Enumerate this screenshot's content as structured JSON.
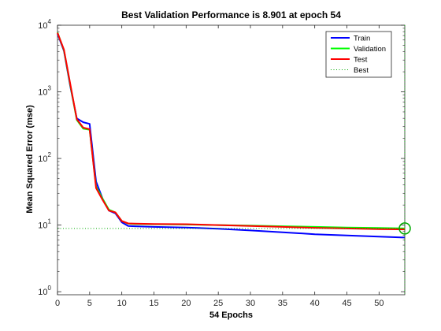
{
  "chart_data": {
    "type": "line",
    "title": "Best Validation Performance is 8.901 at epoch 54",
    "xlabel": "54 Epochs",
    "ylabel": "Mean Squared Error  (mse)",
    "yscale": "log",
    "xlim": [
      0,
      54
    ],
    "ylim": [
      0.9,
      10000
    ],
    "xticks": [
      0,
      5,
      10,
      15,
      20,
      25,
      30,
      35,
      40,
      45,
      50
    ],
    "xtick_labels": [
      "0",
      "5",
      "10",
      "15",
      "20",
      "25",
      "30",
      "35",
      "40",
      "45",
      "50"
    ],
    "yticks": [
      1,
      10,
      100,
      1000,
      10000
    ],
    "ytick_labels": [
      {
        "base": "10",
        "exp": "0"
      },
      {
        "base": "10",
        "exp": "1"
      },
      {
        "base": "10",
        "exp": "2"
      },
      {
        "base": "10",
        "exp": "3"
      },
      {
        "base": "10",
        "exp": "4"
      }
    ],
    "legend_position": "top-right",
    "series": [
      {
        "name": "Train",
        "color": "#0000ff",
        "x": [
          0,
          1,
          2,
          3,
          4,
          5,
          6,
          7,
          8,
          9,
          10,
          11,
          12,
          15,
          20,
          25,
          30,
          35,
          40,
          45,
          50,
          54
        ],
        "y": [
          7500,
          4100,
          1200,
          400,
          350,
          330,
          45,
          25,
          16.5,
          15,
          11,
          9.7,
          9.6,
          9.4,
          9.2,
          8.8,
          8.3,
          7.8,
          7.3,
          7,
          6.7,
          6.5
        ]
      },
      {
        "name": "Validation",
        "color": "#00ff00",
        "x": [
          0,
          1,
          2,
          3,
          4,
          5,
          6,
          7,
          8,
          9,
          10,
          11,
          12,
          15,
          20,
          25,
          30,
          35,
          40,
          45,
          50,
          54
        ],
        "y": [
          7800,
          4200,
          1250,
          380,
          280,
          270,
          38,
          25,
          17,
          15.5,
          11.5,
          10.5,
          10.4,
          10.3,
          10.2,
          10,
          9.8,
          9.6,
          9.4,
          9.2,
          9.05,
          8.901
        ]
      },
      {
        "name": "Test",
        "color": "#ff0000",
        "x": [
          0,
          1,
          2,
          3,
          4,
          5,
          6,
          7,
          8,
          9,
          10,
          11,
          12,
          15,
          20,
          25,
          30,
          35,
          40,
          45,
          50,
          54
        ],
        "y": [
          7700,
          4300,
          1300,
          390,
          290,
          275,
          36,
          24,
          16.5,
          15.5,
          11.5,
          10.6,
          10.5,
          10.4,
          10.3,
          10,
          9.7,
          9.4,
          9.1,
          8.9,
          8.7,
          8.6
        ]
      }
    ],
    "best": {
      "name": "Best",
      "color": "#00aa00",
      "epoch": 54,
      "value": 8.901
    }
  }
}
